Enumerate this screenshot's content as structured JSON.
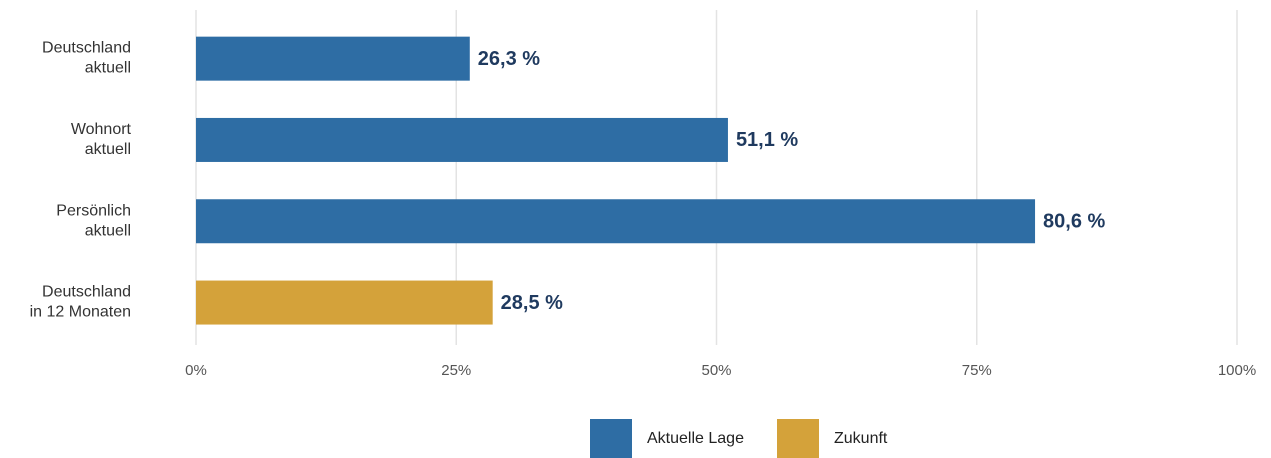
{
  "chart_data": {
    "type": "bar",
    "orientation": "horizontal",
    "categories": [
      [
        "Deutschland",
        "aktuell"
      ],
      [
        "Wohnort",
        "aktuell"
      ],
      [
        "Persönlich",
        "aktuell"
      ],
      [
        "Deutschland",
        "in 12 Monaten"
      ]
    ],
    "series": [
      {
        "name": "Aktuelle Lage",
        "color": "#2e6da4",
        "values": [
          26.3,
          51.1,
          80.6,
          null
        ],
        "value_labels": [
          "26,3 %",
          "51,1 %",
          "80,6 %",
          null
        ]
      },
      {
        "name": "Zukunft",
        "color": "#d4a23a",
        "values": [
          null,
          null,
          null,
          28.5
        ],
        "value_labels": [
          null,
          null,
          null,
          "28,5 %"
        ]
      }
    ],
    "xlim": [
      0,
      100
    ],
    "xticks": [
      {
        "value": 0,
        "label": "0%"
      },
      {
        "value": 25,
        "label": "25%"
      },
      {
        "value": 50,
        "label": "50%"
      },
      {
        "value": 75,
        "label": "75%"
      },
      {
        "value": 100,
        "label": "100%"
      }
    ],
    "grid": true,
    "legend": "bottom"
  }
}
